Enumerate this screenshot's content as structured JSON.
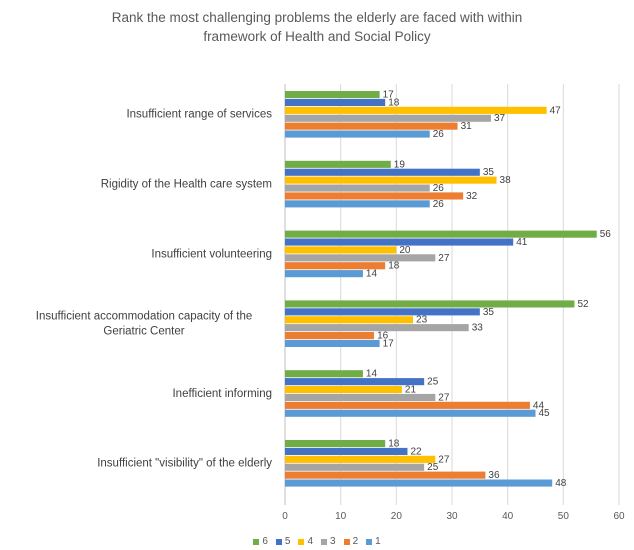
{
  "chart_data": {
    "type": "bar",
    "orientation": "horizontal",
    "title_lines": [
      "Rank the most challenging problems the elderly are faced with within",
      "framework of Health and Social Policy"
    ],
    "categories": [
      {
        "label_lines": [
          "Insufficient range of services"
        ]
      },
      {
        "label_lines": [
          "Rigidity of the Health care system"
        ]
      },
      {
        "label_lines": [
          "Insufficient volunteering"
        ]
      },
      {
        "label_lines": [
          "Insufficient accommodation capacity of the",
          "Geriatric Center"
        ]
      },
      {
        "label_lines": [
          "Inefficient informing"
        ]
      },
      {
        "label_lines": [
          "Insufficient \"visibility\" of the elderly"
        ]
      }
    ],
    "series": [
      {
        "name": "6",
        "color": "#70ad47",
        "values": [
          17,
          19,
          56,
          52,
          14,
          18
        ]
      },
      {
        "name": "5",
        "color": "#4472c4",
        "values": [
          18,
          35,
          41,
          35,
          25,
          22
        ]
      },
      {
        "name": "4",
        "color": "#ffc000",
        "values": [
          47,
          38,
          20,
          23,
          21,
          27
        ]
      },
      {
        "name": "3",
        "color": "#a5a5a5",
        "values": [
          37,
          26,
          27,
          33,
          27,
          25
        ]
      },
      {
        "name": "2",
        "color": "#ed7d31",
        "values": [
          31,
          32,
          18,
          16,
          44,
          36
        ]
      },
      {
        "name": "1",
        "color": "#5b9bd5",
        "values": [
          26,
          26,
          14,
          17,
          45,
          48
        ]
      }
    ],
    "xlim": [
      0,
      60
    ],
    "xticks": [
      0,
      10,
      20,
      30,
      40,
      50,
      60
    ],
    "grid": true,
    "legend_position": "bottom"
  }
}
